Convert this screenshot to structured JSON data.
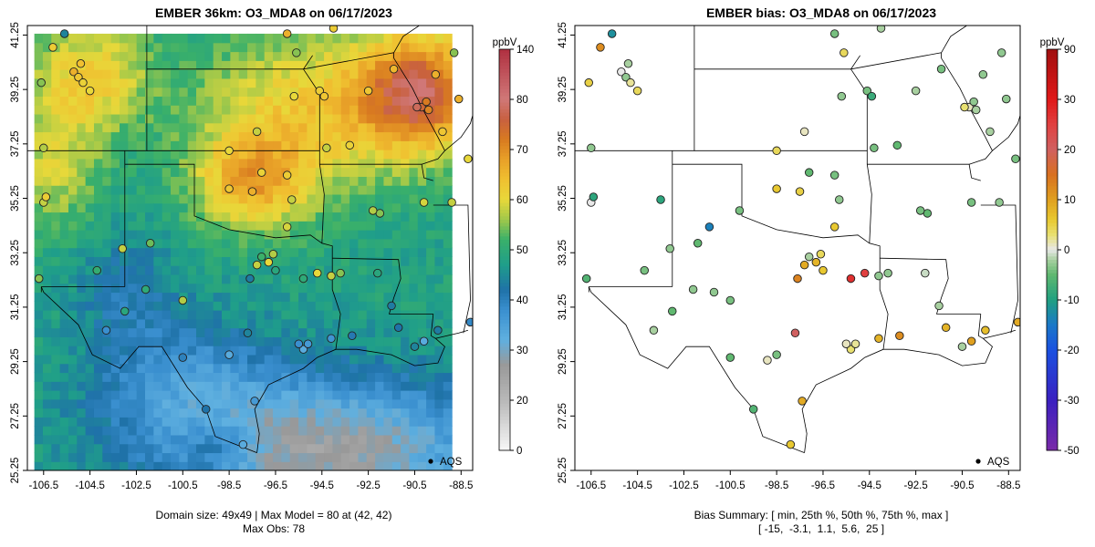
{
  "chart_data": [
    {
      "type": "heatmap",
      "title": "EMBER 36km: O3_MDA8 on 06/17/2023",
      "x_ticks": [
        "-106.5",
        "-104.5",
        "-102.5",
        "-100.5",
        "-98.5",
        "-96.5",
        "-94.5",
        "-92.5",
        "-90.5",
        "-88.5"
      ],
      "y_ticks": [
        "25.25",
        "27.25",
        "29.25",
        "31.25",
        "33.25",
        "35.25",
        "37.25",
        "39.25",
        "41.25"
      ],
      "xlim": [
        -107.2,
        -88.0
      ],
      "ylim": [
        25.25,
        41.6
      ],
      "grid_size": [
        49,
        49
      ],
      "colorbar": {
        "unit": "ppbV",
        "ticks": [
          "140",
          "80",
          "70",
          "60",
          "50",
          "40",
          "30",
          "20",
          "0"
        ]
      },
      "legend": {
        "label": "AQS",
        "position": "bottom-right"
      },
      "caption_line1": "Domain size: 49x49 | Max Model = 80 at (42, 42)",
      "caption_line2": "Max Obs: 78"
    },
    {
      "type": "scatter",
      "title": "EMBER bias: O3_MDA8 on 06/17/2023",
      "x_ticks": [
        "-106.5",
        "-104.5",
        "-102.5",
        "-100.5",
        "-98.5",
        "-96.5",
        "-94.5",
        "-92.5",
        "-90.5",
        "-88.5"
      ],
      "y_ticks": [
        "25.25",
        "27.25",
        "29.25",
        "31.25",
        "33.25",
        "35.25",
        "37.25",
        "39.25",
        "41.25"
      ],
      "xlim": [
        -107.2,
        -88.0
      ],
      "ylim": [
        25.25,
        41.6
      ],
      "colorbar": {
        "unit": "ppbV",
        "ticks": [
          "90",
          "30",
          "20",
          "10",
          "0",
          "-10",
          "-20",
          "-30",
          "-50"
        ]
      },
      "legend": {
        "label": "AQS",
        "position": "bottom-right"
      },
      "bias_summary": {
        "label": "Bias Summary: [ min, 25th %, 50th %, 75th %, max ]",
        "values": "[ -15,  -3.1,  1.1,  5.6,  25 ]",
        "min": -15,
        "p25": -3.1,
        "p50": 1.1,
        "p75": 5.6,
        "max": 25
      }
    }
  ]
}
